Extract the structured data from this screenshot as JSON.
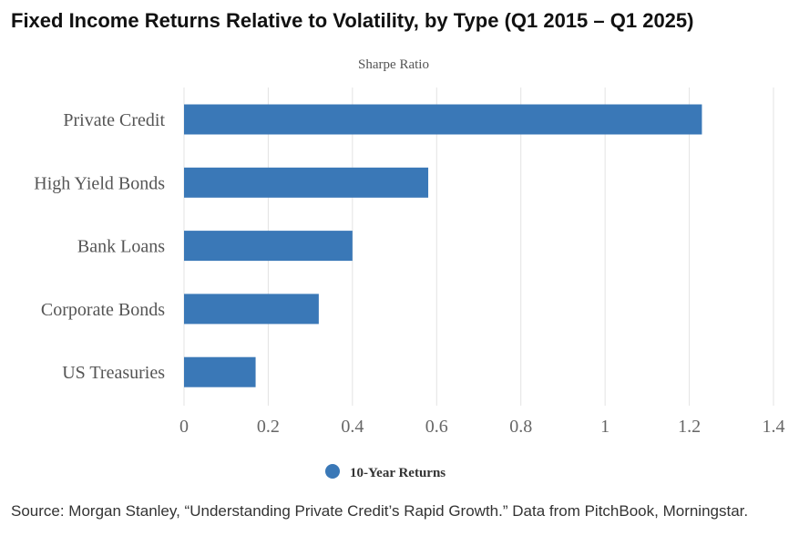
{
  "header": {
    "title": "Fixed Income Returns Relative to Volatility, by Type (Q1 2015 – Q1 2025)"
  },
  "chart_data": {
    "type": "bar",
    "orientation": "horizontal",
    "title": "Sharpe Ratio",
    "categories": [
      "Private Credit",
      "High Yield Bonds",
      "Bank Loans",
      "Corporate Bonds",
      "US Treasuries"
    ],
    "series": [
      {
        "name": "10-Year Returns",
        "values": [
          1.23,
          0.58,
          0.4,
          0.32,
          0.17
        ],
        "color": "#3a78b7"
      }
    ],
    "xlim": [
      0,
      1.4
    ],
    "xticks": [
      "0",
      "0.2",
      "0.4",
      "0.6",
      "0.8",
      "1",
      "1.2",
      "1.4"
    ],
    "grid": true,
    "legend": "bottom-center"
  },
  "footer": {
    "source": "Source: Morgan Stanley, “Understanding Private Credit’s Rapid Growth.” Data from PitchBook, Morningstar."
  }
}
